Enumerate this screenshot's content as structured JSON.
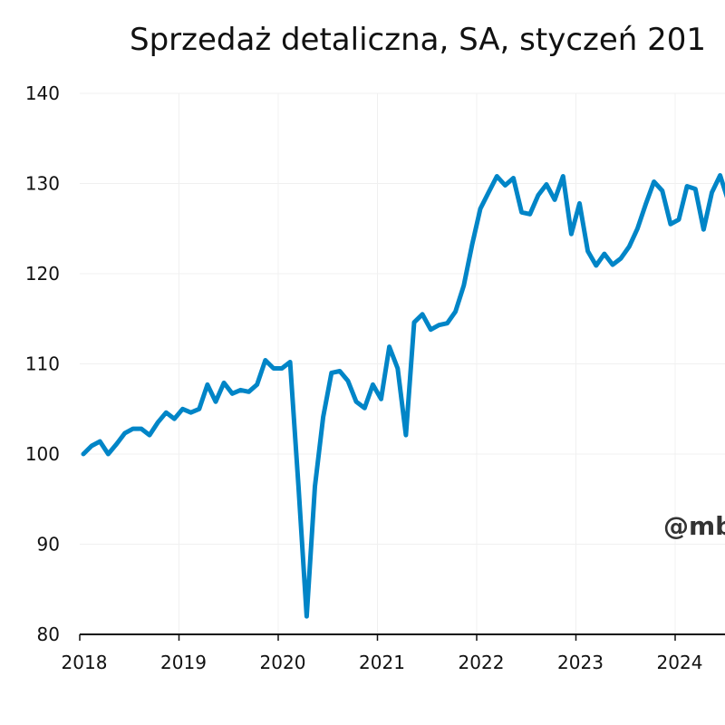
{
  "chart_data": {
    "type": "line",
    "title": "Sprzedaż detaliczna, SA, styczeń 201",
    "watermark": "@mb",
    "xlabel": "",
    "ylabel": "",
    "ylim": [
      80,
      140
    ],
    "yticks": [
      80,
      90,
      100,
      110,
      120,
      130,
      140
    ],
    "xticks": [
      "2018",
      "2019",
      "2020",
      "2021",
      "2022",
      "2023",
      "2024"
    ],
    "grid": true,
    "line_color": "#0085C7",
    "x_start": "2018-01",
    "frequency": "monthly",
    "series": [
      {
        "values": [
          100.0,
          100.9,
          101.4,
          100.0,
          101.1,
          102.3,
          102.8,
          102.8,
          102.1,
          103.5,
          104.6,
          103.9,
          105.0,
          104.6,
          105.0,
          107.7,
          105.8,
          107.9,
          106.7,
          107.1,
          106.9,
          107.7,
          110.4,
          109.5,
          109.5,
          110.2,
          96.5,
          82.0,
          96.4,
          104.1,
          109.0,
          109.2,
          108.1,
          105.8,
          105.1,
          107.7,
          106.1,
          111.9,
          109.5,
          102.1,
          114.6,
          115.5,
          113.8,
          114.3,
          114.5,
          115.8,
          118.7,
          123.2,
          127.2,
          129.0,
          130.8,
          129.8,
          130.6,
          126.8,
          126.6,
          128.7,
          129.9,
          128.2,
          130.8,
          124.4,
          127.8,
          122.5,
          120.9,
          122.2,
          121.0,
          121.7,
          123.0,
          125.0,
          127.7,
          130.2,
          129.2,
          125.5,
          126.0,
          129.7,
          129.4,
          124.9,
          129.0,
          130.9,
          128.0
        ]
      }
    ]
  }
}
